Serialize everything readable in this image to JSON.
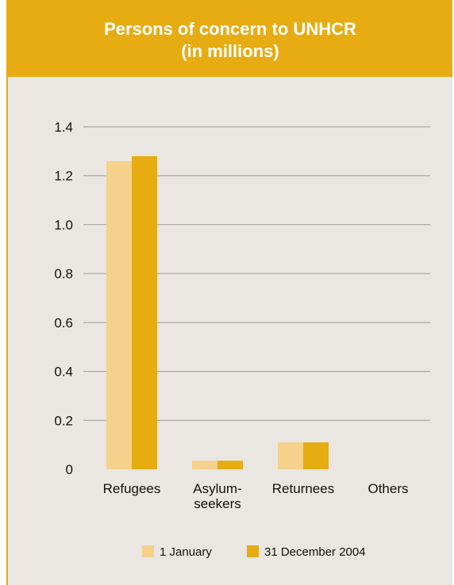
{
  "header": {
    "title_line1": "Persons of concern to UNHCR",
    "title_line2": "(in millions)"
  },
  "colors": {
    "series1": "#f5d18c",
    "series2": "#e6ac12",
    "gridline": "#9a9a9a",
    "background": "#eae7e3"
  },
  "chart_data": {
    "type": "bar",
    "title": "Persons of concern to UNHCR (in millions)",
    "xlabel": "",
    "ylabel": "",
    "categories": [
      "Refugees",
      "Asylum-seekers",
      "Returnees",
      "Others"
    ],
    "category_label_lines": [
      [
        "Refugees"
      ],
      [
        "Asylum-",
        "seekers"
      ],
      [
        "Returnees"
      ],
      [
        "Others"
      ]
    ],
    "series": [
      {
        "name": "1 January",
        "values": [
          1.26,
          0.035,
          0.11,
          0
        ]
      },
      {
        "name": "31 December 2004",
        "values": [
          1.28,
          0.035,
          0.11,
          0
        ]
      }
    ],
    "ylim": [
      0,
      1.4
    ],
    "yticks": [
      0,
      0.2,
      0.4,
      0.6,
      0.8,
      1.0,
      1.2,
      1.4
    ],
    "ytick_labels": [
      "0",
      "0.2",
      "0.4",
      "0.6",
      "0.8",
      "1.0",
      "1.2",
      "1.4"
    ],
    "grid": true,
    "legend_position": "bottom"
  }
}
